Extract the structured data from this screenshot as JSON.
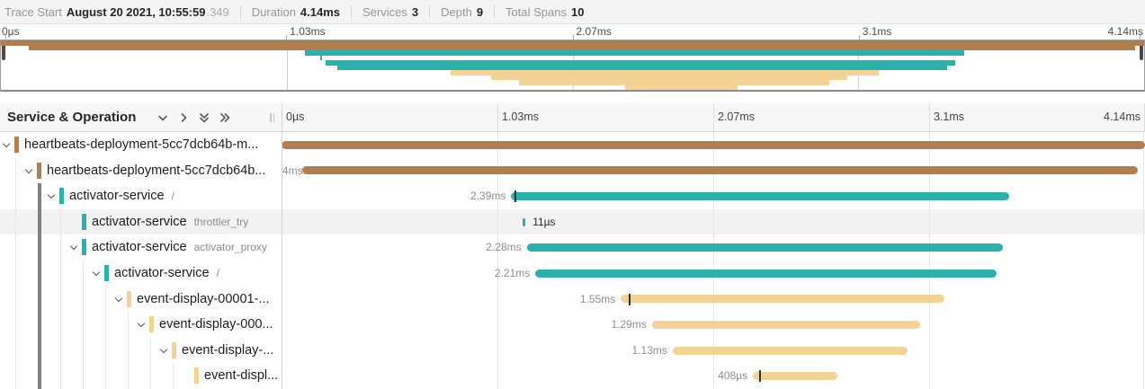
{
  "summary": {
    "items": [
      {
        "label": "Trace Start",
        "value": "August 20 2021, 10:55:59",
        "suffix": ".349"
      },
      {
        "label": "Duration",
        "value": "4.14ms",
        "suffix": ""
      },
      {
        "label": "Services",
        "value": "3",
        "suffix": ""
      },
      {
        "label": "Depth",
        "value": "9",
        "suffix": ""
      },
      {
        "label": "Total Spans",
        "value": "10",
        "suffix": ""
      }
    ]
  },
  "ruler_ticks": [
    "0µs",
    "1.03ms",
    "2.07ms",
    "3.1ms",
    "4.14ms"
  ],
  "grid_header": {
    "title": "Service & Operation",
    "controls": [
      {
        "name": "expand-one-level-button",
        "icon": "chevron-down-icon"
      },
      {
        "name": "collapse-one-level-button",
        "icon": "chevron-right-icon"
      },
      {
        "name": "expand-all-button",
        "icon": "double-chevron-down-icon"
      },
      {
        "name": "collapse-all-button",
        "icon": "double-chevron-right-icon"
      }
    ],
    "ticks": [
      "0µs",
      "1.03ms",
      "2.07ms",
      "3.1ms",
      "4.14ms"
    ]
  },
  "colors": {
    "brown": "#b27d4f",
    "teal": "#2bb0ac",
    "tan": "#f2d394",
    "row_highlight": "#f2f2f2",
    "dark_guide": "#808080",
    "light_guide": "#e7e7e7"
  },
  "chart_data": {
    "type": "gantt-trace",
    "total_duration_label": "4.14ms",
    "total_duration_us": 4140,
    "services": 3,
    "depth": 9,
    "total_spans": 10,
    "axis_ticks": [
      "0µs",
      "1.03ms",
      "2.07ms",
      "3.1ms",
      "4.14ms"
    ],
    "dark_guide_depth": 1,
    "spans": [
      {
        "service": "heartbeats-deployment-5cc7dcb64b-m...",
        "operation": "",
        "depth": 0,
        "color": "brown",
        "start_pct": 0,
        "width_pct": 100,
        "duration_label": "",
        "label_mode": "none",
        "expandable": true,
        "highlighted": false,
        "log_tick_pct": null
      },
      {
        "service": "heartbeats-deployment-5cc7dcb64b...",
        "operation": "",
        "depth": 1,
        "color": "brown",
        "start_pct": 2.4,
        "width_pct": 96.8,
        "duration_label": "4ms",
        "label_mode": "clip",
        "expandable": true,
        "highlighted": false,
        "log_tick_pct": null
      },
      {
        "service": "activator-service",
        "operation": "/",
        "depth": 2,
        "color": "teal",
        "start_pct": 26.6,
        "width_pct": 57.7,
        "duration_label": "2.39ms",
        "label_mode": "left",
        "expandable": true,
        "highlighted": false,
        "log_tick_pct": 27.0
      },
      {
        "service": "activator-service",
        "operation": "throttler_try",
        "depth": 3,
        "color": "teal",
        "start_pct": 27.95,
        "width_pct": 0.3,
        "duration_label": "11µs",
        "label_mode": "right",
        "expandable": false,
        "highlighted": true,
        "log_tick_pct": null
      },
      {
        "service": "activator-service",
        "operation": "activator_proxy",
        "depth": 3,
        "color": "teal",
        "start_pct": 28.4,
        "width_pct": 55.1,
        "duration_label": "2.28ms",
        "label_mode": "left",
        "expandable": true,
        "highlighted": false,
        "log_tick_pct": null
      },
      {
        "service": "activator-service",
        "operation": "/",
        "depth": 4,
        "color": "teal",
        "start_pct": 29.4,
        "width_pct": 53.4,
        "duration_label": "2.21ms",
        "label_mode": "left",
        "expandable": true,
        "highlighted": false,
        "log_tick_pct": null
      },
      {
        "service": "event-display-00001-...",
        "operation": "",
        "depth": 5,
        "color": "tan",
        "start_pct": 39.3,
        "width_pct": 37.5,
        "duration_label": "1.55ms",
        "label_mode": "left",
        "expandable": true,
        "highlighted": false,
        "log_tick_pct": 40.2
      },
      {
        "service": "event-display-000...",
        "operation": "",
        "depth": 6,
        "color": "tan",
        "start_pct": 42.9,
        "width_pct": 31.1,
        "duration_label": "1.29ms",
        "label_mode": "left",
        "expandable": true,
        "highlighted": false,
        "log_tick_pct": null
      },
      {
        "service": "event-display-...",
        "operation": "",
        "depth": 7,
        "color": "tan",
        "start_pct": 45.3,
        "width_pct": 27.2,
        "duration_label": "1.13ms",
        "label_mode": "left",
        "expandable": true,
        "highlighted": false,
        "log_tick_pct": null
      },
      {
        "service": "event-displ...",
        "operation": "",
        "depth": 8,
        "color": "tan",
        "start_pct": 54.6,
        "width_pct": 9.8,
        "duration_label": "408µs",
        "label_mode": "left",
        "expandable": false,
        "highlighted": false,
        "log_tick_pct": 55.3
      }
    ]
  }
}
